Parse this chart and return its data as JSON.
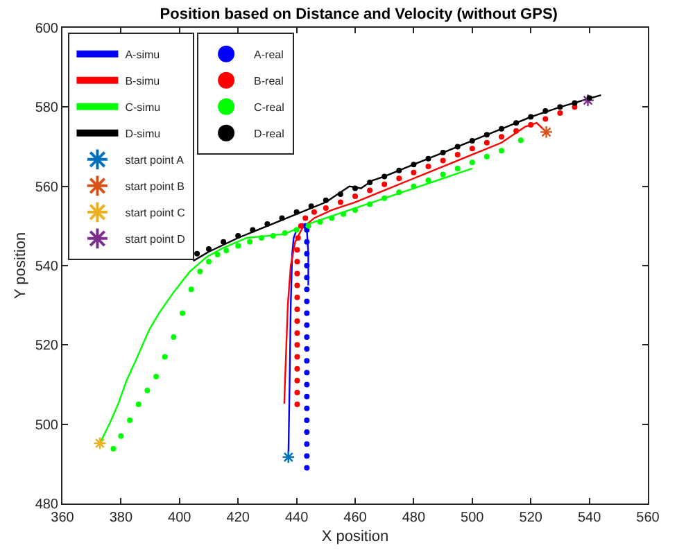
{
  "chart_data": {
    "type": "line",
    "title": "Position based on Distance and Velocity (without GPS)",
    "xlabel": "X position",
    "ylabel": "Y position",
    "xlim": [
      360,
      560
    ],
    "xticks": [
      360,
      380,
      400,
      420,
      440,
      460,
      480,
      500,
      520,
      540,
      560
    ],
    "ylim": [
      480,
      600
    ],
    "yticks": [
      480,
      500,
      520,
      540,
      560,
      580,
      600
    ],
    "legend": "top left",
    "series": [
      {
        "name": "A-simu",
        "color": "#0000ff",
        "x": [
          437.2,
          437.6,
          438,
          438.5,
          439,
          440,
          442,
          443.5,
          444,
          444
        ],
        "values": [
          491.7,
          510,
          530,
          543,
          547,
          549,
          550.5,
          549,
          543,
          535
        ]
      },
      {
        "name": "B-simu",
        "color": "#ff0000",
        "x": [
          525.3,
          522,
          518,
          510,
          500,
          490,
          480,
          470,
          460,
          452,
          446,
          442,
          439.5,
          438,
          437,
          436.5,
          436,
          435.8
        ],
        "values": [
          573.7,
          576,
          575,
          571,
          568,
          565,
          562,
          559,
          556,
          554,
          552,
          549.5,
          546,
          540,
          530,
          520,
          510,
          505.2
        ]
      },
      {
        "name": "C-simu",
        "color": "#00ff00",
        "x": [
          372.8,
          376,
          379,
          381.9,
          385,
          389.7,
          393,
          397.9,
          403.4,
          409.3,
          415,
          423,
          430,
          436,
          442,
          450,
          460,
          470,
          480,
          490,
          500
        ],
        "values": [
          495.2,
          500,
          505,
          511,
          516,
          523.9,
          528,
          533.2,
          538.4,
          542.2,
          544.5,
          547,
          547.5,
          548,
          550,
          552,
          554.5,
          557,
          559.5,
          562,
          564.5
        ]
      },
      {
        "name": "D-simu",
        "color": "#000000",
        "x": [
          404.7,
          410,
          420,
          430,
          440,
          450,
          455,
          458,
          462,
          466,
          470,
          480,
          490,
          500,
          510,
          520,
          530,
          544
        ],
        "values": [
          541.2,
          543.5,
          547,
          550,
          553,
          556,
          558.5,
          560,
          559.5,
          561.5,
          562.5,
          565.5,
          568.5,
          571.5,
          574.5,
          577.5,
          580,
          583
        ]
      },
      {
        "name": "start point A",
        "type": "scatter",
        "marker": "cross",
        "color": "#0072bd",
        "x": [
          437.2
        ],
        "values": [
          491.7
        ]
      },
      {
        "name": "start point B",
        "type": "scatter",
        "marker": "cross",
        "color": "#d95319",
        "x": [
          525.3
        ],
        "values": [
          573.7
        ]
      },
      {
        "name": "start point C",
        "type": "scatter",
        "marker": "cross",
        "color": "#edb120",
        "x": [
          372.8
        ],
        "values": [
          495.2
        ]
      },
      {
        "name": "start point D",
        "type": "scatter",
        "marker": "cross",
        "color": "#7e2f8e",
        "x": [
          539.5
        ],
        "values": [
          581.7
        ]
      },
      {
        "name": "A-real",
        "type": "scatter",
        "marker": "circle",
        "color": "#0000ff",
        "x": [
          443.5,
          443.5,
          443.5,
          443.5,
          443.5,
          443.5,
          443.5,
          443.5,
          443.5,
          443.5,
          443.5,
          443.5,
          443.5,
          443.5,
          443.5,
          443.5,
          443.5,
          443.5,
          443.5,
          443.5,
          443.5,
          443
        ],
        "values": [
          489,
          492,
          495,
          498,
          501,
          504,
          507,
          510,
          513,
          516,
          519,
          522,
          525,
          528,
          531,
          534,
          537,
          540,
          543,
          546,
          549,
          550
        ]
      },
      {
        "name": "B-real",
        "type": "scatter",
        "marker": "circle",
        "color": "#ff0000",
        "x": [
          440.2,
          440.2,
          440.2,
          440.2,
          440.2,
          440.2,
          440.2,
          440.2,
          440.2,
          440.2,
          440.2,
          440.2,
          440.2,
          440.2,
          440.5,
          441.5,
          443,
          446,
          450,
          455,
          460,
          465,
          470,
          475,
          480,
          485,
          490,
          495,
          500,
          505,
          510,
          515,
          520,
          525,
          530,
          535
        ],
        "values": [
          505,
          508,
          511,
          514,
          517,
          520,
          523,
          526,
          529,
          532,
          535,
          538,
          541,
          544,
          547,
          550,
          552,
          553.5,
          554.5,
          556,
          557.5,
          559,
          560.5,
          562,
          563.5,
          565,
          566.5,
          568,
          569.5,
          571,
          572.5,
          574,
          575.5,
          577,
          578.5,
          580
        ]
      },
      {
        "name": "C-real",
        "type": "scatter",
        "marker": "circle",
        "color": "#00ff00",
        "x": [
          377.4,
          380,
          383,
          386,
          389,
          392,
          395,
          398,
          401,
          404,
          407,
          410,
          413,
          416,
          420,
          424,
          428,
          432,
          436,
          440,
          444,
          448,
          452,
          456,
          460,
          465,
          470,
          475,
          480,
          485,
          490,
          495,
          500,
          505,
          510,
          516.6
        ],
        "values": [
          493.8,
          497,
          501,
          505,
          508.5,
          512,
          517,
          522,
          528,
          534,
          538.5,
          541,
          542.8,
          543.8,
          545,
          546,
          547,
          547.5,
          548.2,
          549,
          550,
          551,
          552,
          553,
          554,
          555.5,
          557,
          558.5,
          560,
          561.5,
          563,
          564.5,
          566,
          567.5,
          569,
          571.6
        ]
      },
      {
        "name": "D-real",
        "type": "scatter",
        "marker": "circle",
        "color": "#000000",
        "x": [
          406,
          410,
          415,
          420,
          425,
          430,
          435,
          440,
          445,
          450,
          455,
          460,
          465,
          470,
          475,
          480,
          485,
          490,
          495,
          500,
          505,
          510,
          515,
          520,
          525,
          530,
          535,
          540
        ],
        "values": [
          543,
          544.2,
          546,
          547.5,
          549,
          550.5,
          552,
          553.5,
          555,
          556.5,
          558,
          559.5,
          561,
          562.5,
          564,
          565.5,
          567,
          568.5,
          570,
          571.5,
          573,
          574.5,
          576,
          577.5,
          579,
          580,
          581,
          582.3
        ]
      }
    ]
  }
}
